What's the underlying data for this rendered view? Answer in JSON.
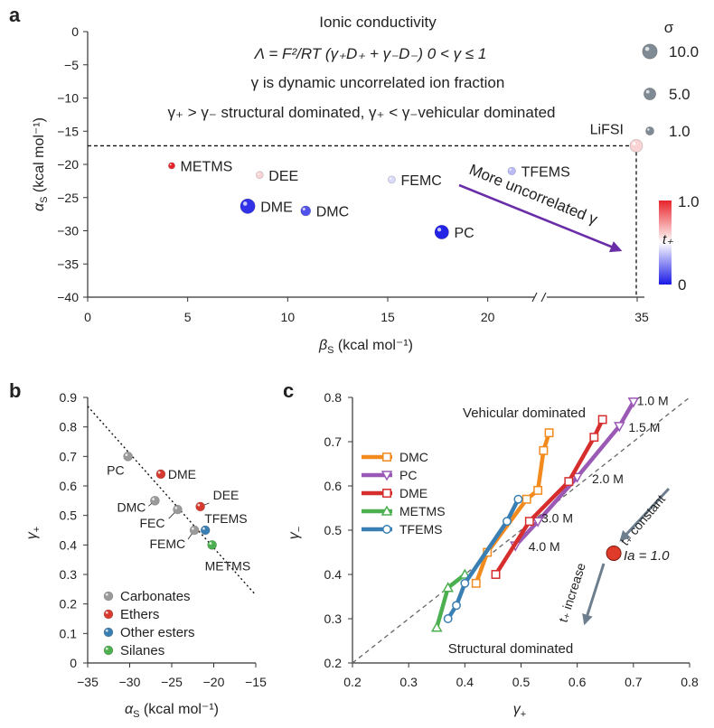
{
  "panels": {
    "a": {
      "label": "a"
    },
    "b": {
      "label": "b"
    },
    "c": {
      "label": "c"
    }
  },
  "colors": {
    "carbonates": "#9a9a9a",
    "ethers": "#d63a2f",
    "other_esters": "#3a7fb3",
    "silanes": "#4caf50",
    "dmc": "#f28a1d",
    "pc": "#9b59b6",
    "dme": "#d62d2d",
    "metms": "#4caf50",
    "tfems": "#3a7fb3",
    "arrow_a": "#6a2da8",
    "arrow_c": "#6d7f8f",
    "la_point": "#e03a2a"
  },
  "chart_data": [
    {
      "panel": "a",
      "type": "scatter",
      "xlabel": "βS (kcal mol⁻¹)",
      "ylabel": "αS (kcal mol⁻¹)",
      "xlim": [
        0,
        22.5
      ],
      "ylim": [
        -40,
        0
      ],
      "x_ticks": [
        0,
        5,
        10,
        15,
        20
      ],
      "x_break_tick": "35",
      "y_ticks": [
        0,
        -5,
        -10,
        -15,
        -20,
        -25,
        -30,
        -35,
        -40
      ],
      "text_lines": [
        "Ionic conductivity",
        "Λ = F²/RT (γ₊D₊ + γ₋D₋)    0 < γ ≤ 1",
        "γ is dynamic uncorrelated ion fraction",
        "γ₊ > γ₋ structural dominated, γ₊ < γ₋vehicular dominated"
      ],
      "arrow_label": "More uncorrelated γ",
      "reference_point": {
        "label": "LiFSI",
        "x": 35,
        "y": -17.2,
        "sigma": 1.0,
        "t_plus": 0.6
      },
      "points": [
        {
          "label": "METMS",
          "x": 4.2,
          "y": -20.2,
          "sigma": 0.3,
          "t_plus": 1.0
        },
        {
          "label": "DEE",
          "x": 8.6,
          "y": -21.6,
          "sigma": 0.5,
          "t_plus": 0.6
        },
        {
          "label": "DME",
          "x": 8.0,
          "y": -26.3,
          "sigma": 7.0,
          "t_plus": 0.05
        },
        {
          "label": "DMC",
          "x": 10.9,
          "y": -27.0,
          "sigma": 2.0,
          "t_plus": 0.12
        },
        {
          "label": "FEMC",
          "x": 15.2,
          "y": -22.3,
          "sigma": 0.6,
          "t_plus": 0.42
        },
        {
          "label": "TFEMS",
          "x": 21.2,
          "y": -21.0,
          "sigma": 0.8,
          "t_plus": 0.35
        },
        {
          "label": "PC",
          "x": 17.7,
          "y": -30.2,
          "sigma": 6.0,
          "t_plus": 0.02
        }
      ],
      "size_legend": {
        "title": "σ",
        "entries": [
          {
            "value": 10.0,
            "label": "10.0"
          },
          {
            "value": 5.0,
            "label": "5.0"
          },
          {
            "value": 1.0,
            "label": "1.0"
          }
        ]
      },
      "color_bar": {
        "label": "t₊",
        "min_label": "0",
        "max_label": "1.0",
        "range": [
          0,
          1
        ]
      }
    },
    {
      "panel": "b",
      "type": "scatter",
      "xlabel": "αS (kcal mol⁻¹)",
      "ylabel": "γ₊",
      "xlim": [
        -35,
        -15
      ],
      "ylim": [
        0,
        0.9
      ],
      "x_ticks": [
        -35,
        -30,
        -25,
        -20,
        -15
      ],
      "y_ticks": [
        0,
        0.1,
        0.2,
        0.3,
        0.4,
        0.5,
        0.6,
        0.7,
        0.8,
        0.9
      ],
      "guide_line": [
        [
          -35,
          0.87
        ],
        [
          -15,
          0.23
        ]
      ],
      "series": [
        {
          "name": "Carbonates",
          "color_key": "carbonates",
          "points": [
            {
              "label": "PC",
              "x": -30.2,
              "y": 0.7
            },
            {
              "label": "DMC",
              "x": -27.0,
              "y": 0.55
            },
            {
              "label": "FEC",
              "x": -24.3,
              "y": 0.52
            },
            {
              "label": "FEMC",
              "x": -22.3,
              "y": 0.45
            }
          ]
        },
        {
          "name": "Ethers",
          "color_key": "ethers",
          "points": [
            {
              "label": "DME",
              "x": -26.3,
              "y": 0.64
            },
            {
              "label": "DEE",
              "x": -21.6,
              "y": 0.53
            }
          ]
        },
        {
          "name": "Other esters",
          "color_key": "other_esters",
          "points": [
            {
              "label": "TFEMS",
              "x": -21.0,
              "y": 0.45
            }
          ]
        },
        {
          "name": "Silanes",
          "color_key": "silanes",
          "points": [
            {
              "label": "METMS",
              "x": -20.2,
              "y": 0.4
            }
          ]
        }
      ]
    },
    {
      "panel": "c",
      "type": "line",
      "xlabel": "γ₊",
      "ylabel": "γ₋",
      "xlim": [
        0.2,
        0.8
      ],
      "ylim": [
        0.2,
        0.8
      ],
      "x_ticks": [
        0.2,
        0.3,
        0.4,
        0.5,
        0.6,
        0.7,
        0.8
      ],
      "y_ticks": [
        0.2,
        0.3,
        0.4,
        0.5,
        0.6,
        0.7,
        0.8
      ],
      "annotations": {
        "top": "Vehicular dominated",
        "bottom": "Structural dominated",
        "t_plus_constant": "t₊ constant",
        "t_plus_increase": "t₊ increase",
        "la_label": "Ia = 1.0"
      },
      "concentration_labels": [
        "1.0 M",
        "1.5 M",
        "2.0 M",
        "3.0 M",
        "4.0 M"
      ],
      "la_point": {
        "x": 0.665,
        "y": 0.448
      },
      "series": [
        {
          "name": "DMC",
          "color_key": "dmc",
          "marker": "square",
          "points": [
            [
              0.55,
              0.72
            ],
            [
              0.54,
              0.68
            ],
            [
              0.53,
              0.59
            ],
            [
              0.51,
              0.57
            ],
            [
              0.44,
              0.45
            ],
            [
              0.42,
              0.38
            ]
          ]
        },
        {
          "name": "PC",
          "color_key": "pc",
          "marker": "triangle-down",
          "points": [
            [
              0.7,
              0.79
            ],
            [
              0.675,
              0.735
            ],
            [
              0.6,
              0.62
            ],
            [
              0.53,
              0.52
            ],
            [
              0.49,
              0.465
            ]
          ]
        },
        {
          "name": "DME",
          "color_key": "dme",
          "marker": "square",
          "points": [
            [
              0.645,
              0.75
            ],
            [
              0.63,
              0.71
            ],
            [
              0.585,
              0.61
            ],
            [
              0.515,
              0.52
            ],
            [
              0.455,
              0.4
            ]
          ]
        },
        {
          "name": "METMS",
          "color_key": "metms",
          "marker": "triangle-up",
          "points": [
            [
              0.4,
              0.4
            ],
            [
              0.37,
              0.37
            ],
            [
              0.35,
              0.28
            ]
          ]
        },
        {
          "name": "TFEMS",
          "color_key": "tfems",
          "marker": "circle",
          "points": [
            [
              0.495,
              0.57
            ],
            [
              0.475,
              0.52
            ],
            [
              0.4,
              0.38
            ],
            [
              0.385,
              0.33
            ],
            [
              0.37,
              0.3
            ]
          ]
        }
      ]
    }
  ]
}
